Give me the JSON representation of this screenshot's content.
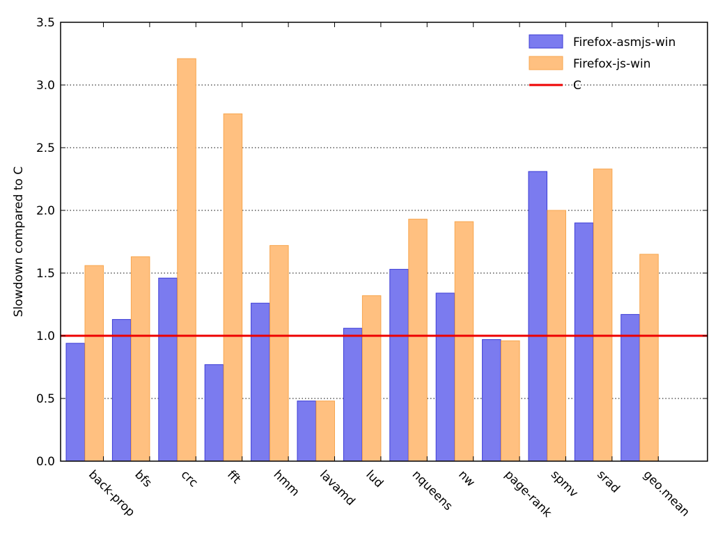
{
  "chart_data": {
    "type": "bar",
    "title": "",
    "xlabel": "",
    "ylabel": "Slowdown compared to C",
    "ylim": [
      0,
      3.5
    ],
    "yticks": [
      "0.0",
      "0.5",
      "1.0",
      "1.5",
      "2.0",
      "2.5",
      "3.0",
      "3.5"
    ],
    "ytick_values": [
      0,
      0.5,
      1.0,
      1.5,
      2.0,
      2.5,
      3.0,
      3.5
    ],
    "grid": "horizontal dotted",
    "legend_position": "top-right",
    "categories": [
      "back-prop",
      "bfs",
      "crc",
      "fft",
      "hmm",
      "lavamd",
      "lud",
      "nqueens",
      "nw",
      "page-rank",
      "spmv",
      "srad",
      "geo.mean"
    ],
    "series": [
      {
        "name": "Firefox-asmjs-win",
        "color": "#7b7bef",
        "edge": "#3b3bd6",
        "values": [
          0.94,
          1.13,
          1.46,
          0.77,
          1.26,
          0.48,
          1.06,
          1.53,
          1.34,
          0.97,
          2.31,
          1.9,
          1.17
        ]
      },
      {
        "name": "Firefox-js-win",
        "color": "#ffc080",
        "edge": "#f7a64e",
        "values": [
          1.56,
          1.63,
          3.21,
          2.77,
          1.72,
          0.48,
          1.32,
          1.93,
          1.91,
          0.96,
          2.0,
          2.33,
          1.65
        ]
      }
    ],
    "reference_line": {
      "name": "C",
      "value": 1.0,
      "color": "#ee0000"
    }
  }
}
